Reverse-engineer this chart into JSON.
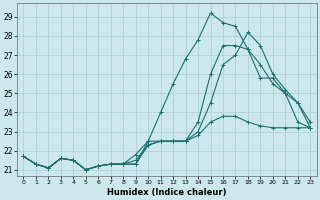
{
  "xlabel": "Humidex (Indice chaleur)",
  "background_color": "#cce8ec",
  "grid_color": "#aacdd4",
  "line_color": "#1a6e6a",
  "xlim": [
    -0.5,
    23.5
  ],
  "ylim": [
    20.7,
    29.7
  ],
  "xticks": [
    0,
    1,
    2,
    3,
    4,
    5,
    6,
    7,
    8,
    9,
    10,
    11,
    12,
    13,
    14,
    15,
    16,
    17,
    18,
    19,
    20,
    21,
    22,
    23
  ],
  "yticks": [
    21,
    22,
    23,
    24,
    25,
    26,
    27,
    28,
    29
  ],
  "series": [
    [
      21.7,
      21.3,
      21.1,
      21.6,
      21.5,
      21.0,
      21.2,
      21.3,
      21.3,
      21.3,
      22.5,
      24.0,
      25.5,
      26.8,
      27.8,
      29.2,
      28.7,
      28.5,
      27.3,
      25.8,
      25.8,
      25.0,
      24.5,
      23.2
    ],
    [
      21.7,
      21.3,
      21.1,
      21.6,
      21.5,
      21.0,
      21.2,
      21.3,
      21.3,
      21.3,
      22.3,
      22.5,
      22.5,
      22.5,
      23.5,
      26.0,
      27.5,
      27.5,
      27.3,
      26.5,
      25.5,
      25.0,
      23.5,
      23.2
    ],
    [
      21.7,
      21.3,
      21.1,
      21.6,
      21.5,
      21.0,
      21.2,
      21.3,
      21.3,
      21.5,
      22.3,
      22.5,
      22.5,
      22.5,
      22.8,
      23.5,
      23.8,
      23.8,
      23.5,
      23.3,
      23.2,
      23.2,
      23.2,
      23.2
    ],
    [
      21.7,
      21.3,
      21.1,
      21.6,
      21.5,
      21.0,
      21.2,
      21.3,
      21.3,
      21.8,
      22.5,
      22.5,
      22.5,
      22.5,
      23.0,
      24.5,
      26.5,
      27.0,
      28.2,
      27.5,
      26.0,
      25.2,
      24.5,
      23.5
    ]
  ]
}
